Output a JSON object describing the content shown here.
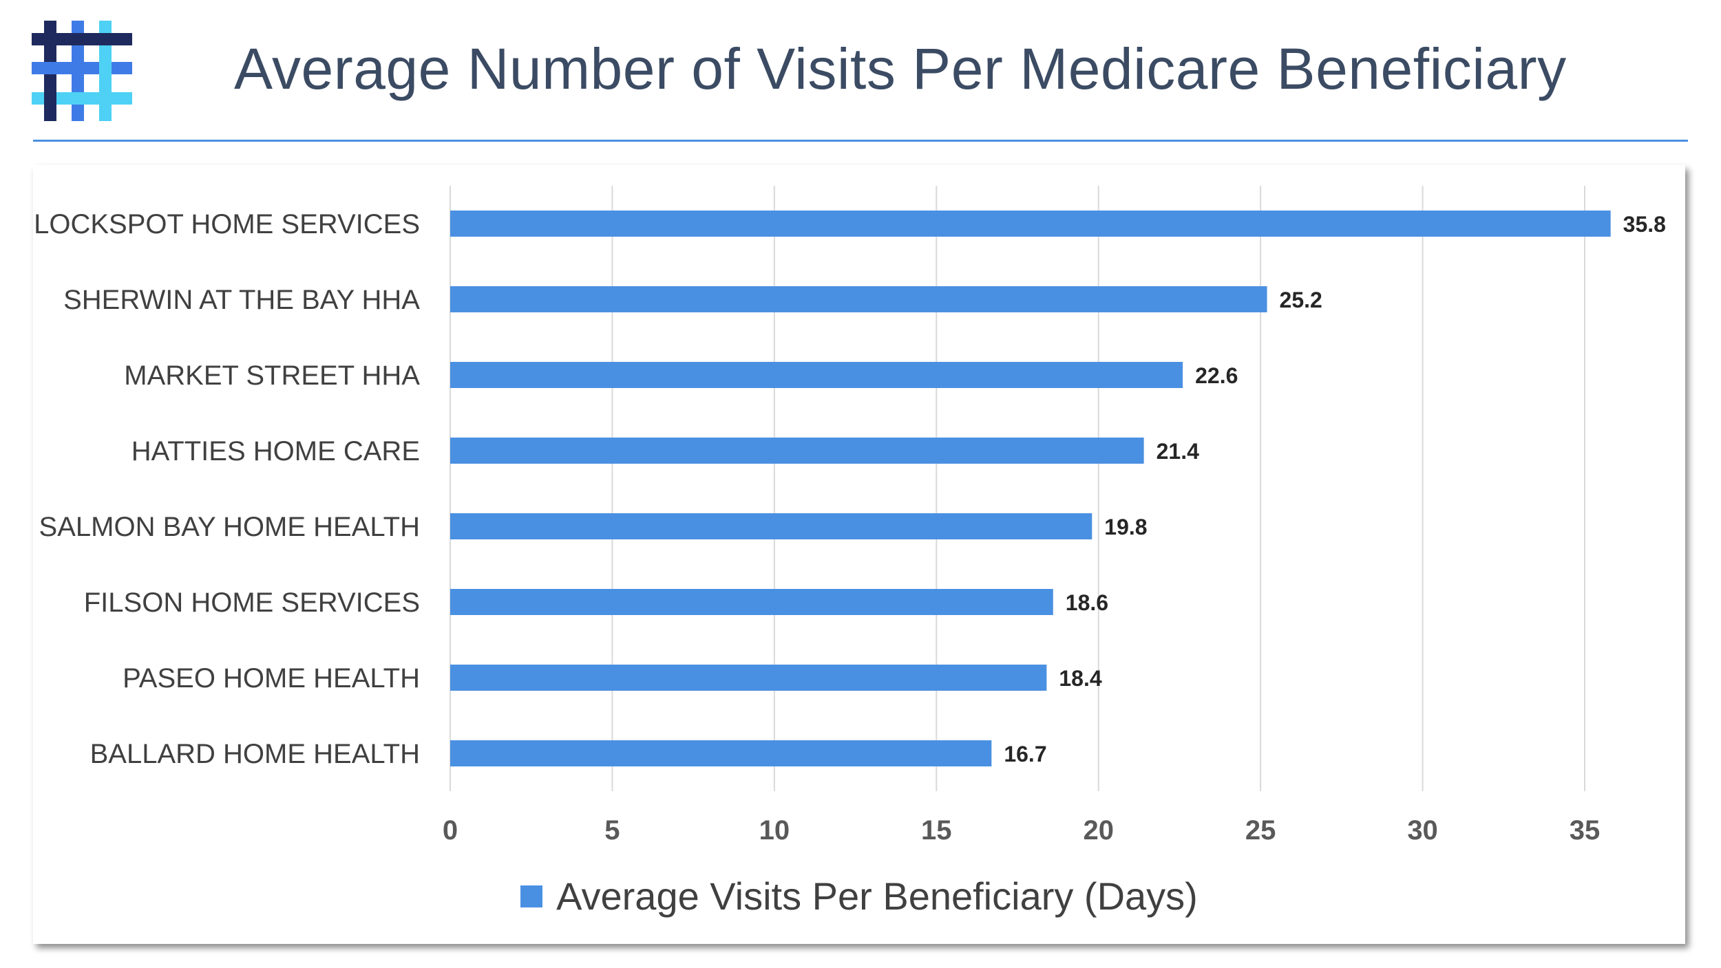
{
  "header": {
    "title": "Average Number of Visits Per Medicare Beneficiary",
    "logo_icon": "hashtag-grid-logo-icon"
  },
  "colors": {
    "bar": "#4a90e2",
    "title_text": "#3b4b63",
    "rule": "#4a90e2",
    "gridline": "#d9d9d9",
    "logo_dark": "#1e2a5e",
    "logo_mid": "#3e7be6",
    "logo_light": "#4fd1f5"
  },
  "chart_data": {
    "type": "bar",
    "orientation": "horizontal",
    "categories": [
      "LOCKSPOT HOME SERVICES",
      "SHERWIN AT THE BAY HHA",
      "MARKET STREET HHA",
      "HATTIES HOME CARE",
      "SALMON BAY HOME HEALTH",
      "FILSON HOME SERVICES",
      "PASEO HOME HEALTH",
      "BALLARD HOME HEALTH"
    ],
    "series": [
      {
        "name": "Average Visits Per Beneficiary (Days)",
        "values": [
          35.8,
          25.2,
          22.6,
          21.4,
          19.8,
          18.6,
          18.4,
          16.7
        ]
      }
    ],
    "value_labels": [
      "35.8",
      "25.2",
      "22.6",
      "21.4",
      "19.8",
      "18.6",
      "18.4",
      "16.7"
    ],
    "xlim": [
      0,
      35
    ],
    "xticks": [
      "0",
      "5",
      "10",
      "15",
      "20",
      "25",
      "30",
      "35"
    ],
    "grid": true,
    "legend_position": "bottom"
  }
}
